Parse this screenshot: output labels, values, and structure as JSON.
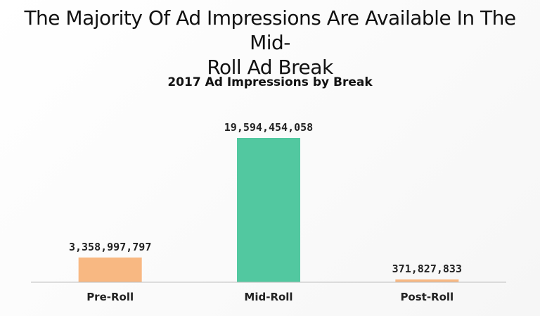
{
  "slide": {
    "title_line1": "The Majority Of Ad Impressions Are Available In The Mid-",
    "title_line2": "Roll Ad Break"
  },
  "chart_data": {
    "type": "bar",
    "title": "2017 Ad Impressions by Break",
    "categories": [
      "Pre-Roll",
      "Mid-Roll",
      "Post-Roll"
    ],
    "values": [
      3358997797,
      19594454058,
      371827833
    ],
    "data_labels": [
      "3,358,997,797",
      "19,594,454,058",
      "371,827,833"
    ],
    "colors": [
      "#f8b882",
      "#52c8a0",
      "#f8b882"
    ],
    "xlabel": "",
    "ylabel": "",
    "grid": false,
    "legend": "none"
  }
}
